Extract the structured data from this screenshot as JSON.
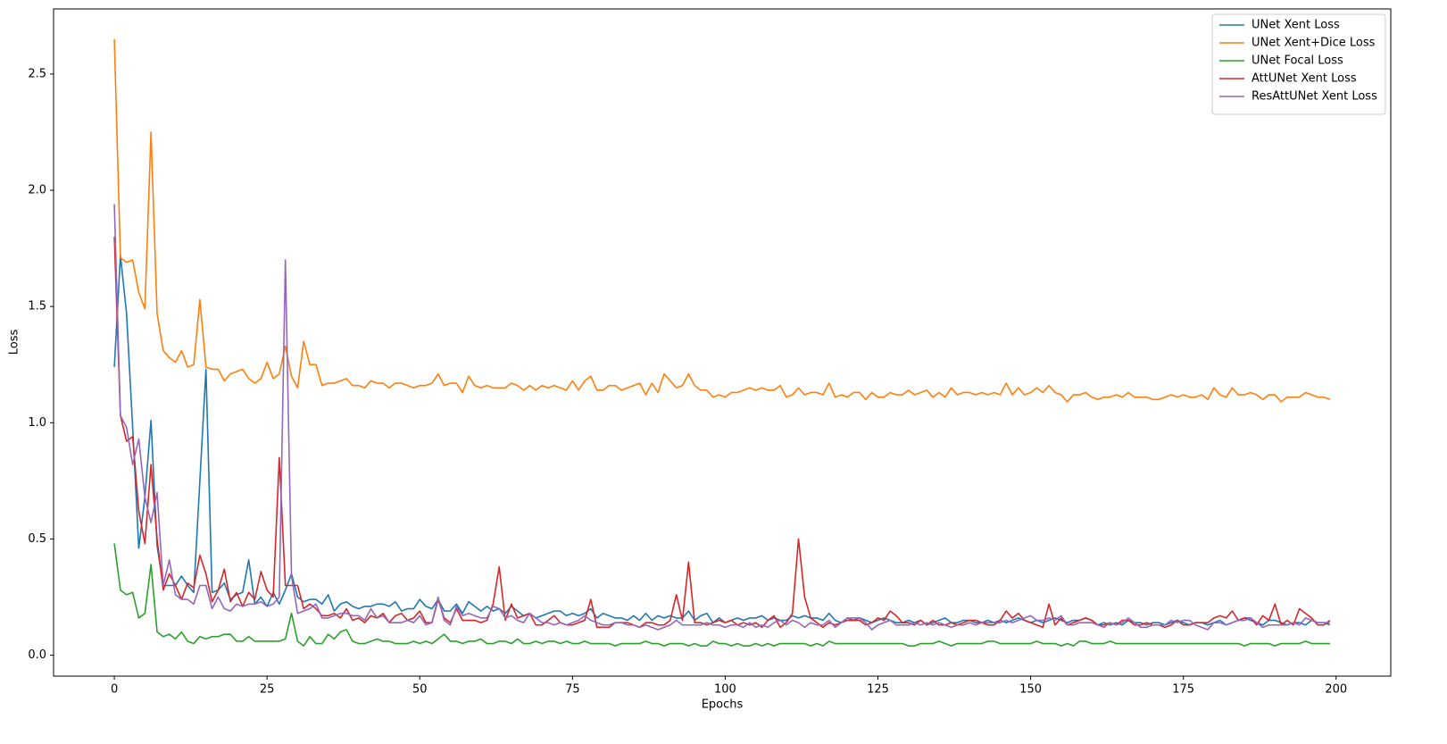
{
  "chart_data": {
    "type": "line",
    "xlabel": "Epochs",
    "ylabel": "Loss",
    "xlim": [
      -9.95,
      208.95
    ],
    "ylim": [
      -0.09,
      2.78
    ],
    "xticks": [
      0,
      25,
      50,
      75,
      100,
      125,
      150,
      175,
      200
    ],
    "yticks": [
      {
        "value": 0,
        "label": "0.0"
      },
      0.5,
      {
        "value": 1,
        "label": "1.0"
      },
      1.5,
      {
        "value": 2,
        "label": "2.0"
      },
      2.5
    ],
    "legend": "upper right",
    "x": [
      0,
      1,
      2,
      3,
      4,
      5,
      6,
      7,
      8,
      9,
      10,
      11,
      12,
      13,
      14,
      15,
      16,
      17,
      18,
      19,
      20,
      21,
      22,
      23,
      24,
      25,
      26,
      27,
      28,
      29,
      30,
      31,
      32,
      33,
      34,
      35,
      36,
      37,
      38,
      39,
      40,
      41,
      42,
      43,
      44,
      45,
      46,
      47,
      48,
      49,
      50,
      51,
      52,
      53,
      54,
      55,
      56,
      57,
      58,
      59,
      60,
      61,
      62,
      63,
      64,
      65,
      66,
      67,
      68,
      69,
      70,
      71,
      72,
      73,
      74,
      75,
      76,
      77,
      78,
      79,
      80,
      81,
      82,
      83,
      84,
      85,
      86,
      87,
      88,
      89,
      90,
      91,
      92,
      93,
      94,
      95,
      96,
      97,
      98,
      99,
      100,
      101,
      102,
      103,
      104,
      105,
      106,
      107,
      108,
      109,
      110,
      111,
      112,
      113,
      114,
      115,
      116,
      117,
      118,
      119,
      120,
      121,
      122,
      123,
      124,
      125,
      126,
      127,
      128,
      129,
      130,
      131,
      132,
      133,
      134,
      135,
      136,
      137,
      138,
      139,
      140,
      141,
      142,
      143,
      144,
      145,
      146,
      147,
      148,
      149,
      150,
      151,
      152,
      153,
      154,
      155,
      156,
      157,
      158,
      159,
      160,
      161,
      162,
      163,
      164,
      165,
      166,
      167,
      168,
      169,
      170,
      171,
      172,
      173,
      174,
      175,
      176,
      177,
      178,
      179,
      180,
      181,
      182,
      183,
      184,
      185,
      186,
      187,
      188,
      189,
      190,
      191,
      192,
      193,
      194,
      195,
      196,
      197,
      198,
      199
    ],
    "series": [
      {
        "name": "UNet Xent Loss",
        "color": "#1f77b4",
        "values": [
          1.24,
          1.72,
          1.47,
          0.98,
          0.46,
          0.68,
          1.01,
          0.47,
          0.3,
          0.3,
          0.3,
          0.34,
          0.3,
          0.27,
          0.75,
          1.23,
          0.27,
          0.28,
          0.31,
          0.24,
          0.26,
          0.27,
          0.41,
          0.22,
          0.25,
          0.21,
          0.27,
          0.22,
          0.28,
          0.35,
          0.25,
          0.23,
          0.24,
          0.24,
          0.22,
          0.26,
          0.19,
          0.22,
          0.23,
          0.21,
          0.2,
          0.21,
          0.21,
          0.22,
          0.22,
          0.21,
          0.23,
          0.19,
          0.2,
          0.2,
          0.24,
          0.21,
          0.2,
          0.24,
          0.19,
          0.19,
          0.22,
          0.18,
          0.23,
          0.21,
          0.19,
          0.21,
          0.19,
          0.2,
          0.18,
          0.21,
          0.19,
          0.17,
          0.18,
          0.16,
          0.17,
          0.18,
          0.19,
          0.19,
          0.17,
          0.18,
          0.17,
          0.18,
          0.2,
          0.16,
          0.18,
          0.17,
          0.16,
          0.16,
          0.15,
          0.17,
          0.15,
          0.18,
          0.15,
          0.17,
          0.16,
          0.17,
          0.16,
          0.16,
          0.19,
          0.15,
          0.17,
          0.18,
          0.14,
          0.16,
          0.14,
          0.15,
          0.16,
          0.15,
          0.16,
          0.16,
          0.17,
          0.15,
          0.16,
          0.15,
          0.15,
          0.17,
          0.16,
          0.17,
          0.16,
          0.16,
          0.15,
          0.18,
          0.15,
          0.14,
          0.16,
          0.15,
          0.16,
          0.15,
          0.14,
          0.15,
          0.16,
          0.15,
          0.14,
          0.14,
          0.15,
          0.14,
          0.15,
          0.13,
          0.14,
          0.15,
          0.16,
          0.14,
          0.14,
          0.15,
          0.15,
          0.14,
          0.14,
          0.15,
          0.14,
          0.15,
          0.14,
          0.15,
          0.16,
          0.15,
          0.14,
          0.15,
          0.14,
          0.15,
          0.16,
          0.15,
          0.14,
          0.15,
          0.15,
          0.16,
          0.15,
          0.13,
          0.14,
          0.13,
          0.14,
          0.13,
          0.15,
          0.14,
          0.14,
          0.13,
          0.14,
          0.14,
          0.13,
          0.14,
          0.15,
          0.14,
          0.13,
          0.14,
          0.14,
          0.13,
          0.14,
          0.15,
          0.13,
          0.14,
          0.15,
          0.16,
          0.15,
          0.14,
          0.13,
          0.15,
          0.15,
          0.14,
          0.13,
          0.14,
          0.14,
          0.13,
          0.15,
          0.14,
          0.14,
          0.13
        ]
      },
      {
        "name": "UNet Xent+Dice Loss",
        "color": "#ff7f0e",
        "values": [
          2.65,
          1.71,
          1.69,
          1.7,
          1.56,
          1.49,
          2.25,
          1.47,
          1.31,
          1.28,
          1.26,
          1.31,
          1.24,
          1.25,
          1.53,
          1.24,
          1.23,
          1.23,
          1.18,
          1.21,
          1.22,
          1.23,
          1.19,
          1.17,
          1.19,
          1.26,
          1.19,
          1.21,
          1.33,
          1.2,
          1.15,
          1.35,
          1.25,
          1.25,
          1.16,
          1.17,
          1.17,
          1.18,
          1.19,
          1.16,
          1.16,
          1.15,
          1.18,
          1.17,
          1.17,
          1.15,
          1.17,
          1.17,
          1.16,
          1.15,
          1.16,
          1.16,
          1.17,
          1.21,
          1.16,
          1.17,
          1.17,
          1.13,
          1.2,
          1.16,
          1.15,
          1.16,
          1.15,
          1.15,
          1.15,
          1.17,
          1.16,
          1.14,
          1.16,
          1.14,
          1.16,
          1.15,
          1.16,
          1.15,
          1.14,
          1.18,
          1.14,
          1.18,
          1.2,
          1.14,
          1.14,
          1.16,
          1.16,
          1.14,
          1.15,
          1.16,
          1.17,
          1.12,
          1.17,
          1.13,
          1.21,
          1.18,
          1.15,
          1.16,
          1.21,
          1.16,
          1.14,
          1.14,
          1.11,
          1.12,
          1.11,
          1.13,
          1.13,
          1.14,
          1.15,
          1.14,
          1.15,
          1.14,
          1.14,
          1.16,
          1.11,
          1.12,
          1.15,
          1.12,
          1.13,
          1.13,
          1.12,
          1.17,
          1.11,
          1.12,
          1.11,
          1.13,
          1.13,
          1.1,
          1.13,
          1.11,
          1.11,
          1.13,
          1.12,
          1.12,
          1.14,
          1.12,
          1.13,
          1.14,
          1.11,
          1.13,
          1.11,
          1.15,
          1.12,
          1.13,
          1.13,
          1.12,
          1.13,
          1.12,
          1.13,
          1.12,
          1.17,
          1.12,
          1.15,
          1.12,
          1.13,
          1.15,
          1.13,
          1.16,
          1.13,
          1.12,
          1.09,
          1.12,
          1.12,
          1.13,
          1.11,
          1.1,
          1.11,
          1.11,
          1.12,
          1.11,
          1.13,
          1.11,
          1.11,
          1.11,
          1.1,
          1.1,
          1.11,
          1.12,
          1.11,
          1.12,
          1.11,
          1.11,
          1.12,
          1.1,
          1.15,
          1.12,
          1.11,
          1.15,
          1.12,
          1.12,
          1.13,
          1.12,
          1.1,
          1.12,
          1.12,
          1.09,
          1.11,
          1.11,
          1.11,
          1.13,
          1.12,
          1.11,
          1.11,
          1.1
        ]
      },
      {
        "name": "UNet Focal Loss",
        "color": "#2ca02c",
        "values": [
          0.48,
          0.28,
          0.26,
          0.27,
          0.16,
          0.18,
          0.39,
          0.1,
          0.08,
          0.09,
          0.07,
          0.1,
          0.06,
          0.05,
          0.08,
          0.07,
          0.08,
          0.08,
          0.09,
          0.09,
          0.06,
          0.06,
          0.08,
          0.06,
          0.06,
          0.06,
          0.06,
          0.06,
          0.07,
          0.18,
          0.06,
          0.04,
          0.08,
          0.05,
          0.05,
          0.09,
          0.07,
          0.1,
          0.11,
          0.06,
          0.05,
          0.05,
          0.06,
          0.07,
          0.06,
          0.06,
          0.05,
          0.05,
          0.05,
          0.06,
          0.05,
          0.06,
          0.05,
          0.07,
          0.09,
          0.06,
          0.06,
          0.05,
          0.06,
          0.06,
          0.07,
          0.05,
          0.05,
          0.06,
          0.06,
          0.05,
          0.07,
          0.05,
          0.05,
          0.06,
          0.05,
          0.06,
          0.06,
          0.05,
          0.06,
          0.05,
          0.05,
          0.06,
          0.05,
          0.05,
          0.05,
          0.05,
          0.04,
          0.05,
          0.05,
          0.05,
          0.05,
          0.06,
          0.05,
          0.05,
          0.04,
          0.05,
          0.05,
          0.05,
          0.04,
          0.05,
          0.04,
          0.04,
          0.06,
          0.05,
          0.05,
          0.04,
          0.05,
          0.04,
          0.04,
          0.05,
          0.04,
          0.05,
          0.04,
          0.05,
          0.05,
          0.05,
          0.05,
          0.05,
          0.04,
          0.05,
          0.04,
          0.06,
          0.05,
          0.05,
          0.05,
          0.05,
          0.05,
          0.05,
          0.05,
          0.05,
          0.05,
          0.05,
          0.05,
          0.05,
          0.04,
          0.04,
          0.05,
          0.05,
          0.05,
          0.06,
          0.05,
          0.04,
          0.05,
          0.05,
          0.05,
          0.05,
          0.05,
          0.06,
          0.06,
          0.05,
          0.05,
          0.05,
          0.05,
          0.05,
          0.05,
          0.06,
          0.05,
          0.05,
          0.05,
          0.04,
          0.05,
          0.04,
          0.06,
          0.06,
          0.05,
          0.05,
          0.05,
          0.06,
          0.05,
          0.05,
          0.05,
          0.05,
          0.05,
          0.05,
          0.05,
          0.05,
          0.05,
          0.05,
          0.05,
          0.05,
          0.05,
          0.05,
          0.05,
          0.05,
          0.05,
          0.05,
          0.05,
          0.05,
          0.05,
          0.04,
          0.05,
          0.05,
          0.05,
          0.05,
          0.04,
          0.05,
          0.05,
          0.05,
          0.05,
          0.06,
          0.05,
          0.05,
          0.05,
          0.05
        ]
      },
      {
        "name": "AttUNet Xent Loss",
        "color": "#d62728",
        "values": [
          1.8,
          1.03,
          0.92,
          0.94,
          0.62,
          0.48,
          0.82,
          0.5,
          0.28,
          0.35,
          0.3,
          0.24,
          0.31,
          0.29,
          0.43,
          0.35,
          0.23,
          0.28,
          0.37,
          0.23,
          0.27,
          0.21,
          0.27,
          0.24,
          0.36,
          0.28,
          0.25,
          0.85,
          0.3,
          0.3,
          0.3,
          0.2,
          0.22,
          0.2,
          0.17,
          0.17,
          0.18,
          0.16,
          0.2,
          0.15,
          0.16,
          0.14,
          0.17,
          0.16,
          0.18,
          0.14,
          0.17,
          0.18,
          0.15,
          0.16,
          0.19,
          0.14,
          0.14,
          0.24,
          0.16,
          0.14,
          0.2,
          0.15,
          0.15,
          0.15,
          0.14,
          0.15,
          0.22,
          0.38,
          0.15,
          0.22,
          0.16,
          0.17,
          0.18,
          0.13,
          0.13,
          0.15,
          0.17,
          0.14,
          0.13,
          0.13,
          0.14,
          0.15,
          0.24,
          0.12,
          0.12,
          0.12,
          0.14,
          0.14,
          0.14,
          0.13,
          0.12,
          0.14,
          0.14,
          0.13,
          0.13,
          0.15,
          0.26,
          0.15,
          0.4,
          0.14,
          0.14,
          0.13,
          0.14,
          0.15,
          0.14,
          0.15,
          0.13,
          0.14,
          0.13,
          0.14,
          0.12,
          0.15,
          0.17,
          0.12,
          0.14,
          0.18,
          0.5,
          0.25,
          0.16,
          0.14,
          0.12,
          0.14,
          0.13,
          0.14,
          0.15,
          0.15,
          0.15,
          0.13,
          0.14,
          0.16,
          0.15,
          0.19,
          0.17,
          0.14,
          0.14,
          0.13,
          0.15,
          0.13,
          0.15,
          0.13,
          0.13,
          0.14,
          0.13,
          0.14,
          0.15,
          0.15,
          0.14,
          0.13,
          0.13,
          0.15,
          0.19,
          0.16,
          0.18,
          0.15,
          0.14,
          0.13,
          0.12,
          0.22,
          0.13,
          0.16,
          0.13,
          0.14,
          0.15,
          0.16,
          0.15,
          0.13,
          0.13,
          0.14,
          0.13,
          0.15,
          0.15,
          0.13,
          0.13,
          0.14,
          0.13,
          0.13,
          0.12,
          0.13,
          0.15,
          0.13,
          0.13,
          0.14,
          0.14,
          0.14,
          0.16,
          0.17,
          0.16,
          0.19,
          0.15,
          0.16,
          0.16,
          0.13,
          0.17,
          0.15,
          0.22,
          0.13,
          0.15,
          0.13,
          0.2,
          0.18,
          0.16,
          0.13,
          0.13,
          0.15
        ]
      },
      {
        "name": "ResAttUNet Xent Loss",
        "color": "#9467bd",
        "values": [
          1.94,
          1.03,
          0.98,
          0.82,
          0.93,
          0.68,
          0.57,
          0.7,
          0.3,
          0.41,
          0.26,
          0.24,
          0.24,
          0.22,
          0.3,
          0.3,
          0.2,
          0.25,
          0.2,
          0.19,
          0.22,
          0.21,
          0.22,
          0.22,
          0.23,
          0.21,
          0.22,
          0.25,
          1.7,
          0.34,
          0.18,
          0.19,
          0.2,
          0.22,
          0.16,
          0.16,
          0.17,
          0.18,
          0.18,
          0.17,
          0.17,
          0.15,
          0.2,
          0.16,
          0.17,
          0.14,
          0.14,
          0.14,
          0.15,
          0.14,
          0.17,
          0.13,
          0.14,
          0.25,
          0.15,
          0.13,
          0.21,
          0.17,
          0.18,
          0.17,
          0.16,
          0.16,
          0.21,
          0.2,
          0.16,
          0.17,
          0.15,
          0.14,
          0.18,
          0.16,
          0.14,
          0.14,
          0.13,
          0.14,
          0.13,
          0.14,
          0.15,
          0.17,
          0.15,
          0.14,
          0.13,
          0.13,
          0.14,
          0.14,
          0.13,
          0.13,
          0.12,
          0.13,
          0.12,
          0.11,
          0.12,
          0.13,
          0.15,
          0.13,
          0.13,
          0.13,
          0.13,
          0.14,
          0.13,
          0.13,
          0.12,
          0.13,
          0.13,
          0.12,
          0.14,
          0.12,
          0.13,
          0.12,
          0.14,
          0.15,
          0.13,
          0.15,
          0.14,
          0.12,
          0.14,
          0.13,
          0.13,
          0.15,
          0.12,
          0.14,
          0.16,
          0.16,
          0.16,
          0.14,
          0.11,
          0.13,
          0.14,
          0.15,
          0.13,
          0.13,
          0.13,
          0.14,
          0.13,
          0.14,
          0.13,
          0.14,
          0.13,
          0.12,
          0.13,
          0.13,
          0.14,
          0.13,
          0.14,
          0.14,
          0.14,
          0.14,
          0.15,
          0.14,
          0.15,
          0.16,
          0.17,
          0.15,
          0.15,
          0.16,
          0.15,
          0.17,
          0.13,
          0.13,
          0.14,
          0.14,
          0.14,
          0.13,
          0.12,
          0.14,
          0.13,
          0.14,
          0.16,
          0.14,
          0.12,
          0.12,
          0.13,
          0.13,
          0.13,
          0.15,
          0.14,
          0.15,
          0.15,
          0.13,
          0.12,
          0.11,
          0.14,
          0.14,
          0.13,
          0.14,
          0.15,
          0.15,
          0.16,
          0.14,
          0.12,
          0.13,
          0.13,
          0.13,
          0.13,
          0.14,
          0.13,
          0.16,
          0.15,
          0.14,
          0.14,
          0.14
        ]
      }
    ]
  }
}
